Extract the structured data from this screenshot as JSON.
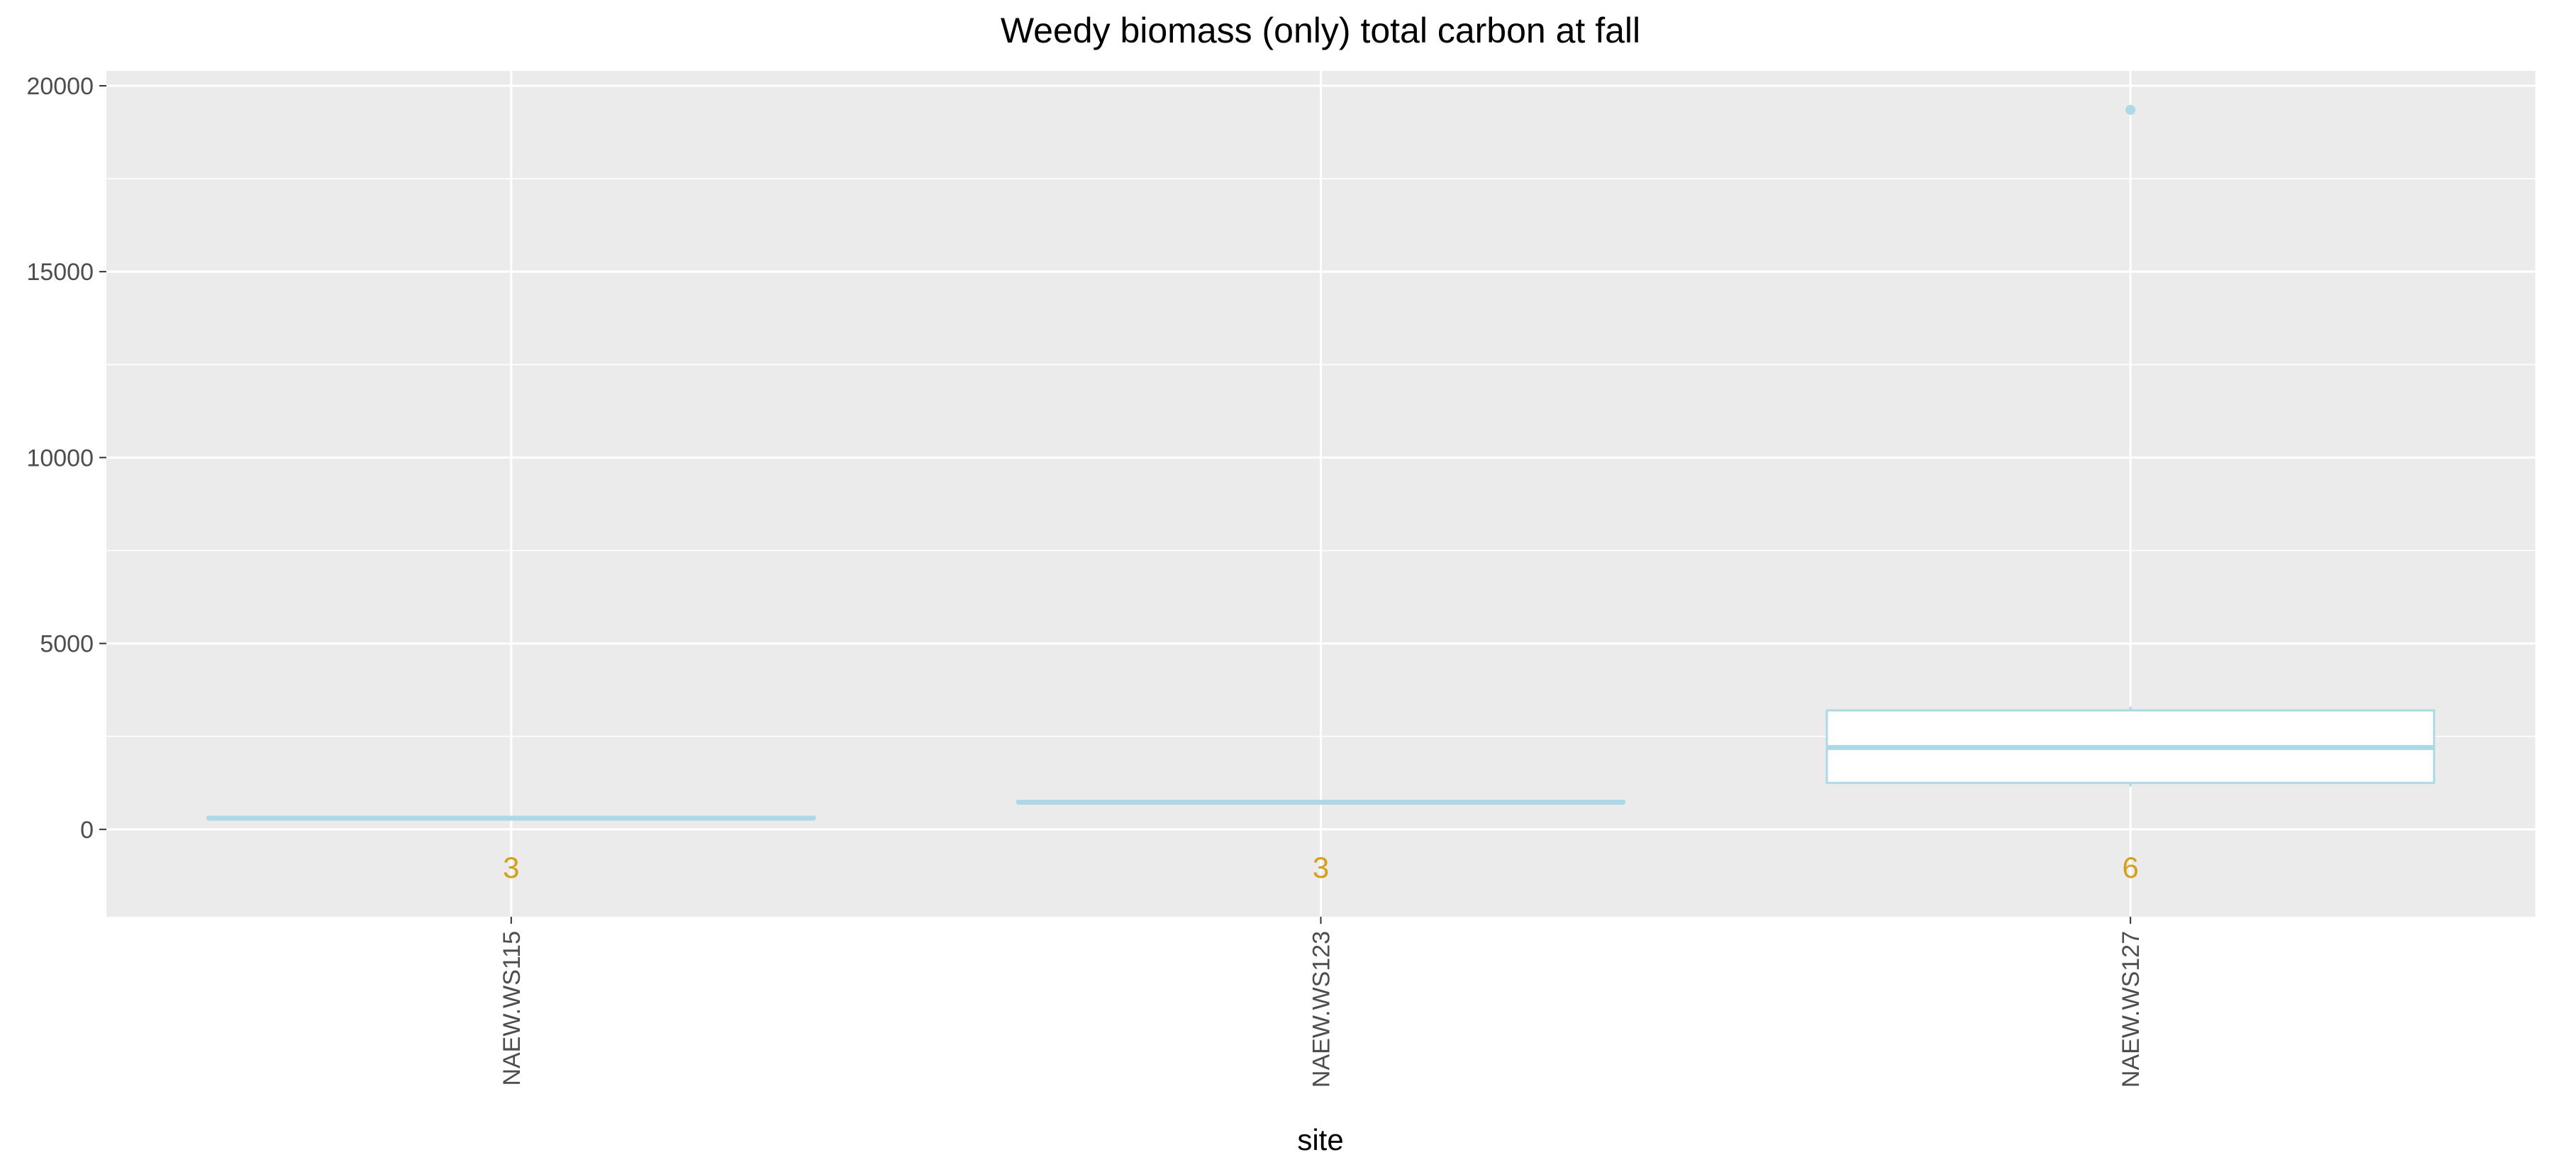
{
  "chart_data": {
    "type": "box",
    "title": "Weedy biomass (only) total carbon at fall",
    "xlabel": "site",
    "ylabel": "",
    "ylim": [
      -2350,
      20400
    ],
    "yticks": [
      0,
      5000,
      10000,
      15000,
      20000
    ],
    "categories": [
      "NAEW.WS115",
      "NAEW.WS123",
      "NAEW.WS127"
    ],
    "boxes": [
      {
        "category": "NAEW.WS115",
        "q1": 290,
        "median": 300,
        "q3": 320,
        "whisker_low": 290,
        "whisker_high": 320,
        "outliers": [],
        "n": "3"
      },
      {
        "category": "NAEW.WS123",
        "q1": 720,
        "median": 730,
        "q3": 750,
        "whisker_low": 720,
        "whisker_high": 750,
        "outliers": [],
        "n": "3"
      },
      {
        "category": "NAEW.WS127",
        "q1": 1250,
        "median": 2200,
        "q3": 3200,
        "whisker_low": 1150,
        "whisker_high": 3300,
        "outliers": [
          19350
        ],
        "n": "6"
      }
    ],
    "box_color": "#add8e6",
    "box_fill": "#ffffff",
    "count_color": "#d4a017",
    "panel_background": "#ebebeb",
    "grid": true,
    "legend": "none"
  }
}
